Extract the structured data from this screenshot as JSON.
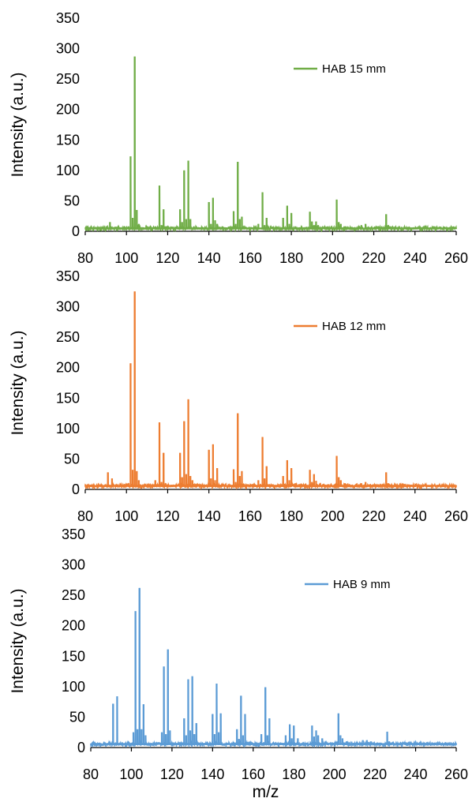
{
  "chart_data": [
    {
      "type": "line",
      "xlim": [
        80,
        260
      ],
      "ylim": [
        0,
        350
      ],
      "xticks": [
        "80",
        "100",
        "120",
        "140",
        "160",
        "180",
        "200",
        "220",
        "240",
        "260"
      ],
      "yticks": [
        "0",
        "50",
        "100",
        "150",
        "200",
        "250",
        "300",
        "350"
      ],
      "ylabel": "Intensity (a.u.)",
      "xlabel": "",
      "legend_position": "top-right",
      "series": [
        {
          "name": "HAB 15 mm",
          "color": "#70ad47",
          "baseline": 3,
          "peaks": [
            [
              92,
              15
            ],
            [
              94,
              6
            ],
            [
              101,
              8
            ],
            [
              102,
              123
            ],
            [
              103,
              22
            ],
            [
              104,
              287
            ],
            [
              105,
              35
            ],
            [
              106,
              12
            ],
            [
              114,
              8
            ],
            [
              116,
              75
            ],
            [
              117,
              10
            ],
            [
              118,
              36
            ],
            [
              119,
              8
            ],
            [
              126,
              36
            ],
            [
              127,
              15
            ],
            [
              128,
              100
            ],
            [
              129,
              20
            ],
            [
              130,
              116
            ],
            [
              131,
              20
            ],
            [
              140,
              48
            ],
            [
              141,
              12
            ],
            [
              142,
              55
            ],
            [
              143,
              18
            ],
            [
              144,
              12
            ],
            [
              152,
              33
            ],
            [
              153,
              12
            ],
            [
              154,
              114
            ],
            [
              155,
              20
            ],
            [
              156,
              24
            ],
            [
              164,
              12
            ],
            [
              166,
              64
            ],
            [
              167,
              10
            ],
            [
              168,
              22
            ],
            [
              176,
              22
            ],
            [
              178,
              42
            ],
            [
              179,
              12
            ],
            [
              180,
              30
            ],
            [
              182,
              8
            ],
            [
              189,
              32
            ],
            [
              190,
              16
            ],
            [
              191,
              10
            ],
            [
              192,
              16
            ],
            [
              193,
              10
            ],
            [
              202,
              52
            ],
            [
              203,
              15
            ],
            [
              204,
              12
            ],
            [
              206,
              8
            ],
            [
              214,
              10
            ],
            [
              216,
              12
            ],
            [
              226,
              28
            ],
            [
              227,
              10
            ],
            [
              228,
              8
            ],
            [
              240,
              6
            ],
            [
              250,
              5
            ]
          ]
        }
      ]
    },
    {
      "type": "line",
      "xlim": [
        80,
        260
      ],
      "ylim": [
        0,
        350
      ],
      "xticks": [
        "80",
        "100",
        "120",
        "140",
        "160",
        "180",
        "200",
        "220",
        "240",
        "260"
      ],
      "yticks": [
        "0",
        "50",
        "100",
        "150",
        "200",
        "250",
        "300",
        "350"
      ],
      "ylabel": "Intensity (a.u.)",
      "xlabel": "",
      "legend_position": "top-right",
      "series": [
        {
          "name": "HAB 12 mm",
          "color": "#ed7d31",
          "baseline": 4,
          "peaks": [
            [
              91,
              28
            ],
            [
              93,
              18
            ],
            [
              101,
              10
            ],
            [
              102,
              207
            ],
            [
              103,
              32
            ],
            [
              104,
              325
            ],
            [
              105,
              30
            ],
            [
              106,
              15
            ],
            [
              114,
              15
            ],
            [
              116,
              110
            ],
            [
              117,
              12
            ],
            [
              118,
              60
            ],
            [
              119,
              10
            ],
            [
              126,
              60
            ],
            [
              127,
              20
            ],
            [
              128,
              112
            ],
            [
              129,
              25
            ],
            [
              130,
              148
            ],
            [
              131,
              22
            ],
            [
              132,
              15
            ],
            [
              140,
              65
            ],
            [
              141,
              18
            ],
            [
              142,
              74
            ],
            [
              143,
              15
            ],
            [
              144,
              35
            ],
            [
              152,
              33
            ],
            [
              153,
              12
            ],
            [
              154,
              125
            ],
            [
              155,
              22
            ],
            [
              156,
              30
            ],
            [
              164,
              15
            ],
            [
              166,
              86
            ],
            [
              167,
              18
            ],
            [
              168,
              38
            ],
            [
              176,
              22
            ],
            [
              178,
              48
            ],
            [
              179,
              15
            ],
            [
              180,
              35
            ],
            [
              182,
              10
            ],
            [
              189,
              32
            ],
            [
              190,
              12
            ],
            [
              191,
              25
            ],
            [
              192,
              14
            ],
            [
              194,
              10
            ],
            [
              202,
              55
            ],
            [
              203,
              20
            ],
            [
              204,
              15
            ],
            [
              206,
              10
            ],
            [
              214,
              10
            ],
            [
              216,
              12
            ],
            [
              218,
              8
            ],
            [
              226,
              28
            ],
            [
              227,
              10
            ],
            [
              228,
              8
            ],
            [
              240,
              6
            ],
            [
              250,
              5
            ]
          ]
        }
      ]
    },
    {
      "type": "line",
      "xlim": [
        80,
        260
      ],
      "ylim": [
        0,
        350
      ],
      "xticks": [
        "80",
        "100",
        "120",
        "140",
        "160",
        "180",
        "200",
        "220",
        "240",
        "260"
      ],
      "yticks": [
        "0",
        "50",
        "100",
        "150",
        "200",
        "250",
        "300",
        "350"
      ],
      "ylabel": "Intensity (a.u.)",
      "xlabel": "m/z",
      "legend_position": "top-right",
      "series": [
        {
          "name": "HAB 9 mm",
          "color": "#5b9bd5",
          "baseline": 4,
          "peaks": [
            [
              91,
              72
            ],
            [
              93,
              84
            ],
            [
              101,
              25
            ],
            [
              102,
              224
            ],
            [
              103,
              30
            ],
            [
              104,
              262
            ],
            [
              105,
              30
            ],
            [
              106,
              71
            ],
            [
              107,
              20
            ],
            [
              115,
              25
            ],
            [
              116,
              133
            ],
            [
              117,
              22
            ],
            [
              118,
              161
            ],
            [
              119,
              28
            ],
            [
              126,
              48
            ],
            [
              127,
              20
            ],
            [
              128,
              112
            ],
            [
              129,
              28
            ],
            [
              130,
              117
            ],
            [
              131,
              22
            ],
            [
              132,
              40
            ],
            [
              140,
              55
            ],
            [
              141,
              22
            ],
            [
              142,
              105
            ],
            [
              143,
              25
            ],
            [
              144,
              56
            ],
            [
              152,
              30
            ],
            [
              153,
              14
            ],
            [
              154,
              85
            ],
            [
              155,
              20
            ],
            [
              156,
              55
            ],
            [
              164,
              22
            ],
            [
              166,
              99
            ],
            [
              167,
              20
            ],
            [
              168,
              48
            ],
            [
              176,
              20
            ],
            [
              178,
              38
            ],
            [
              179,
              15
            ],
            [
              180,
              36
            ],
            [
              182,
              15
            ],
            [
              189,
              36
            ],
            [
              190,
              18
            ],
            [
              191,
              28
            ],
            [
              192,
              20
            ],
            [
              194,
              15
            ],
            [
              202,
              56
            ],
            [
              203,
              20
            ],
            [
              204,
              15
            ],
            [
              206,
              10
            ],
            [
              214,
              12
            ],
            [
              216,
              12
            ],
            [
              218,
              10
            ],
            [
              226,
              26
            ],
            [
              227,
              10
            ],
            [
              228,
              8
            ],
            [
              240,
              6
            ],
            [
              250,
              5
            ]
          ]
        }
      ]
    }
  ]
}
